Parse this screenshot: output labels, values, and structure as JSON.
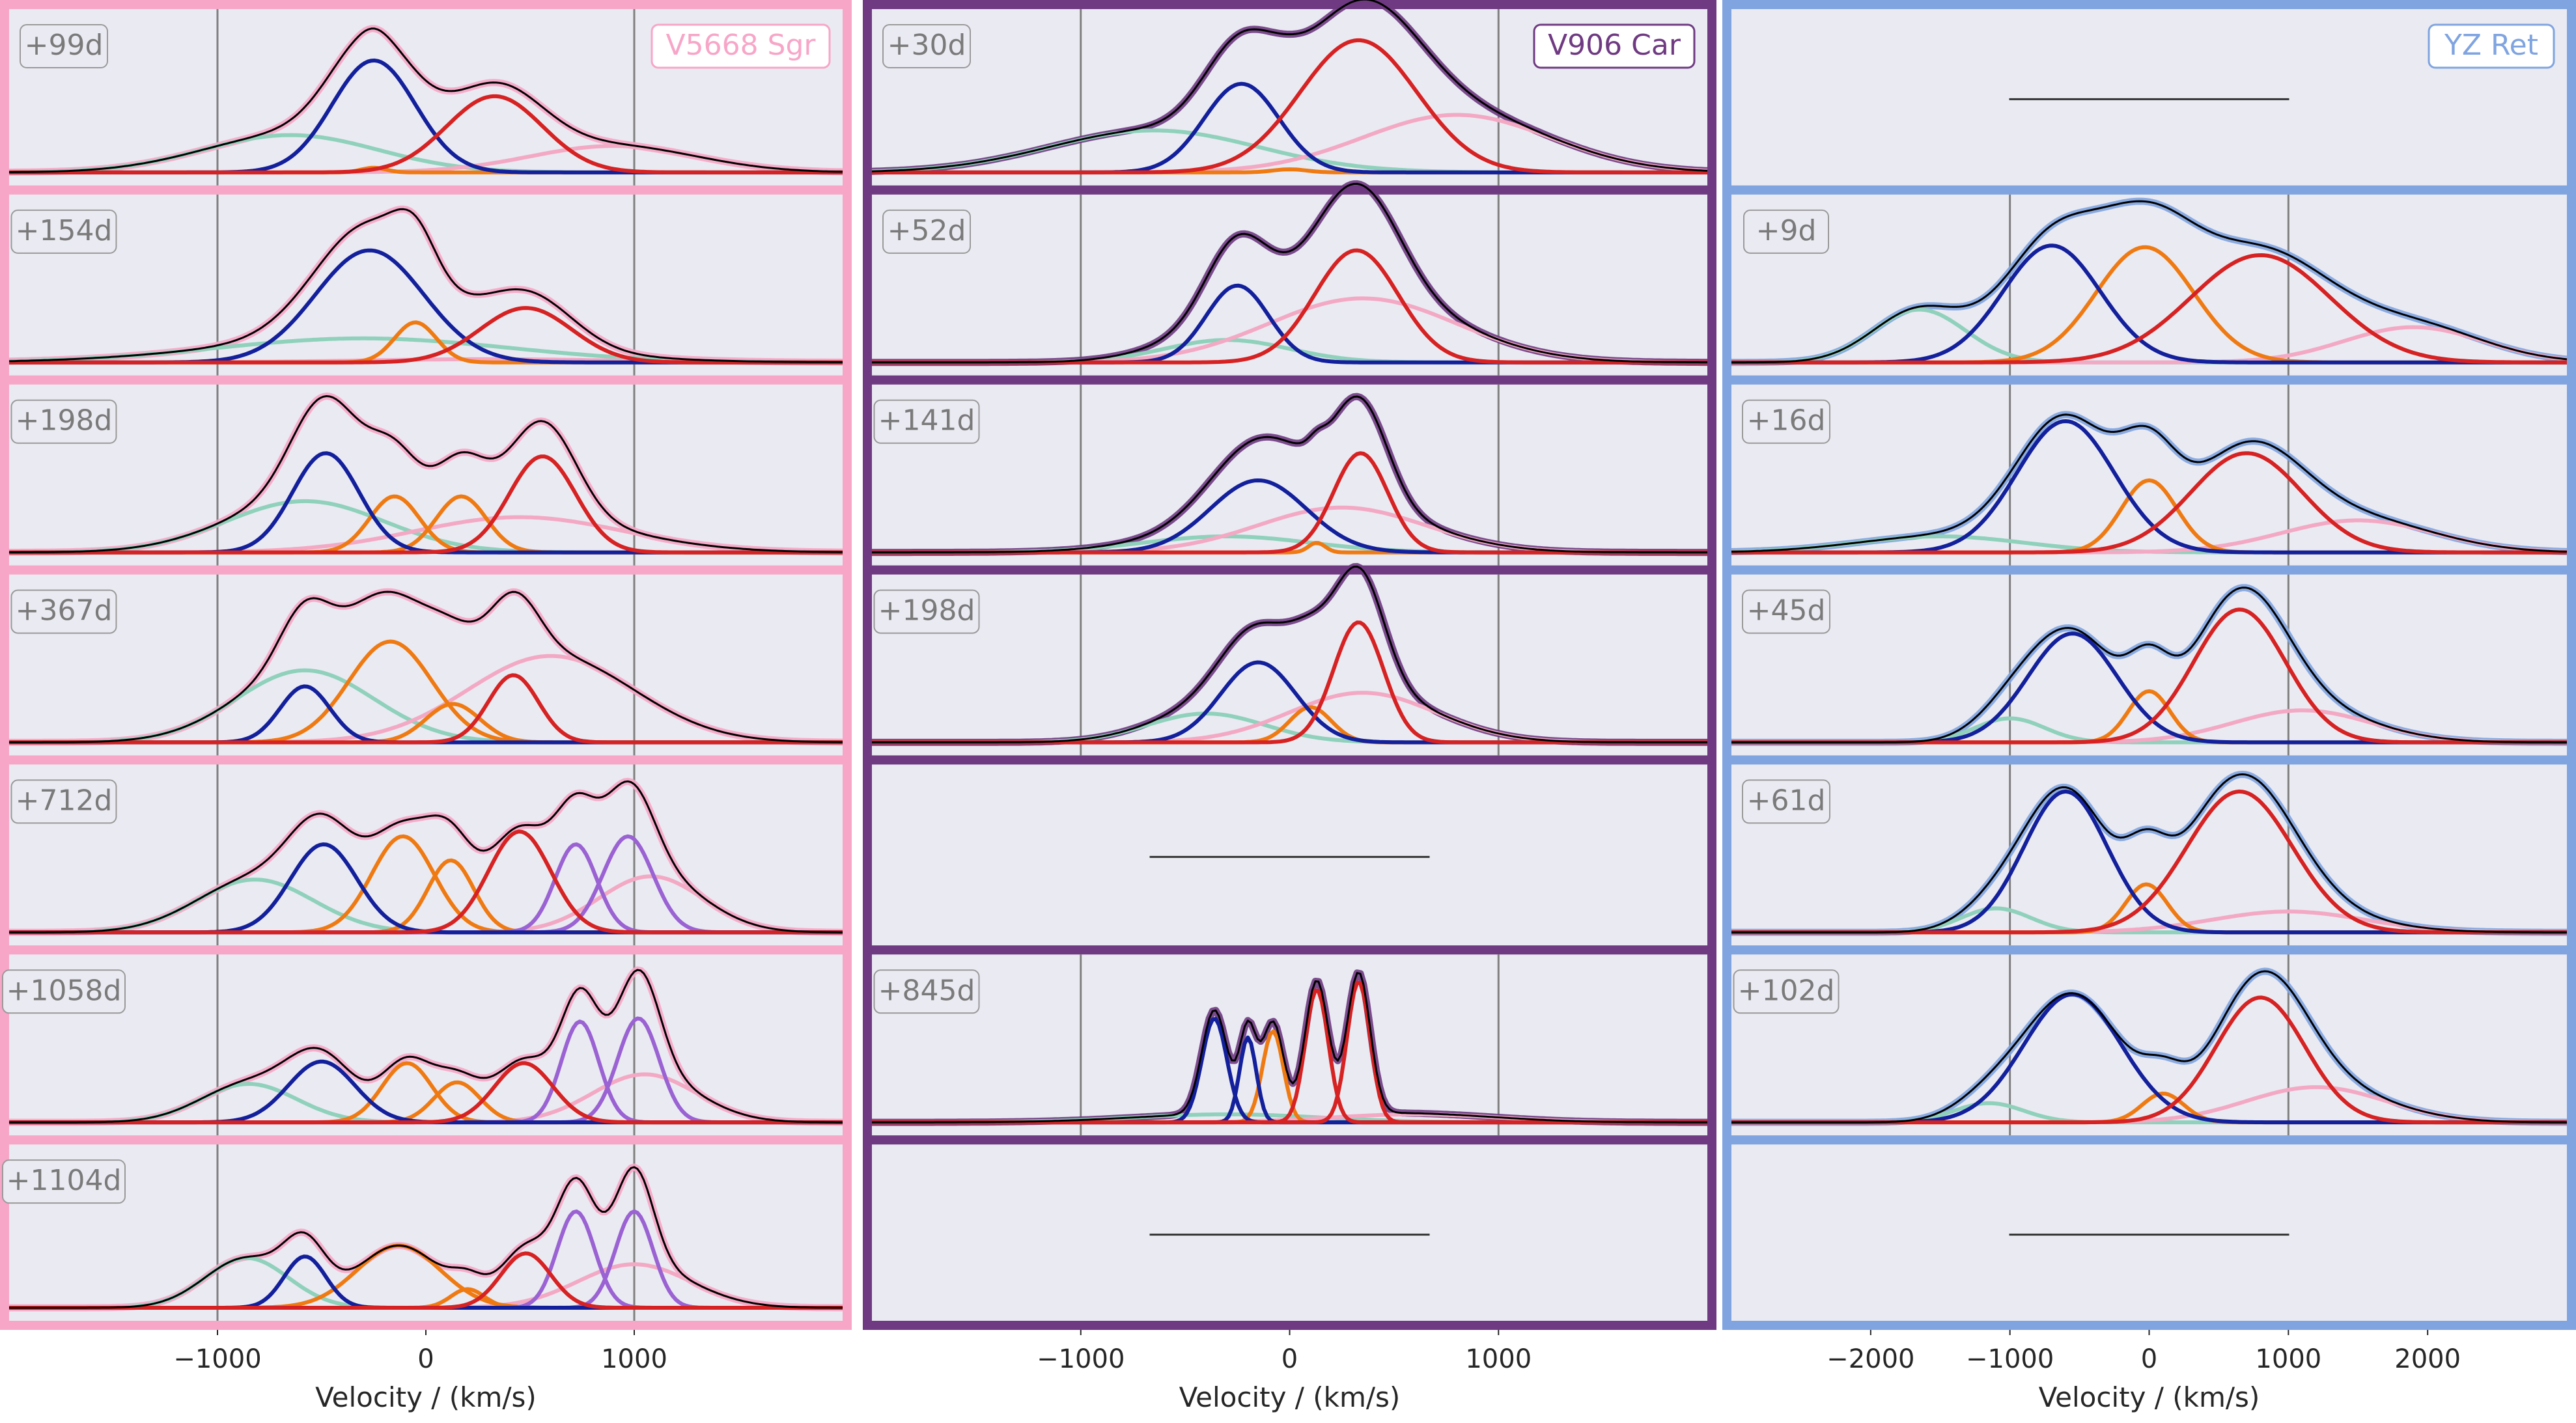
{
  "chart_data": [
    {
      "type": "line",
      "star": "V5668 Sgr",
      "color": "#f7a6c7",
      "xlabel": "Velocity / (km/s)",
      "xlim": [
        -2000,
        2000
      ],
      "xticks": [
        -1000,
        0,
        1000
      ],
      "xtick_labels": [
        "−1000",
        "0",
        "1000"
      ],
      "vlines": [
        -1000,
        1000
      ],
      "epochs": [
        {
          "label": "+99d",
          "components": [
            {
              "color": "teal",
              "mu": -650,
              "sigma": 420,
              "amp": 0.24
            },
            {
              "color": "blue",
              "mu": -250,
              "sigma": 200,
              "amp": 0.72
            },
            {
              "color": "orange",
              "mu": -250,
              "sigma": 60,
              "amp": 0.03
            },
            {
              "color": "red",
              "mu": 330,
              "sigma": 230,
              "amp": 0.49
            },
            {
              "color": "pink",
              "mu": 900,
              "sigma": 400,
              "amp": 0.17
            }
          ]
        },
        {
          "label": "+154d",
          "components": [
            {
              "color": "teal",
              "mu": -300,
              "sigma": 700,
              "amp": 0.15
            },
            {
              "color": "blue",
              "mu": -270,
              "sigma": 260,
              "amp": 0.7
            },
            {
              "color": "orange",
              "mu": -50,
              "sigma": 100,
              "amp": 0.25
            },
            {
              "color": "red",
              "mu": 480,
              "sigma": 220,
              "amp": 0.34
            },
            {
              "color": "pink",
              "mu": 300,
              "sigma": 600,
              "amp": 0.02
            }
          ]
        },
        {
          "label": "+198d",
          "components": [
            {
              "color": "teal",
              "mu": -580,
              "sigma": 380,
              "amp": 0.32
            },
            {
              "color": "blue",
              "mu": -480,
              "sigma": 160,
              "amp": 0.62
            },
            {
              "color": "orange",
              "mu": -150,
              "sigma": 120,
              "amp": 0.35
            },
            {
              "color": "orange",
              "mu": 170,
              "sigma": 120,
              "amp": 0.35
            },
            {
              "color": "red",
              "mu": 560,
              "sigma": 160,
              "amp": 0.6
            },
            {
              "color": "pink",
              "mu": 450,
              "sigma": 500,
              "amp": 0.22
            }
          ]
        },
        {
          "label": "+367d",
          "components": [
            {
              "color": "teal",
              "mu": -580,
              "sigma": 330,
              "amp": 0.45
            },
            {
              "color": "blue",
              "mu": -580,
              "sigma": 120,
              "amp": 0.35
            },
            {
              "color": "orange",
              "mu": -170,
              "sigma": 200,
              "amp": 0.63
            },
            {
              "color": "orange",
              "mu": 130,
              "sigma": 130,
              "amp": 0.24
            },
            {
              "color": "red",
              "mu": 420,
              "sigma": 120,
              "amp": 0.42
            },
            {
              "color": "pink",
              "mu": 600,
              "sigma": 400,
              "amp": 0.54
            }
          ]
        },
        {
          "label": "+712d",
          "components": [
            {
              "color": "teal",
              "mu": -820,
              "sigma": 280,
              "amp": 0.33
            },
            {
              "color": "blue",
              "mu": -490,
              "sigma": 160,
              "amp": 0.55
            },
            {
              "color": "orange",
              "mu": -110,
              "sigma": 150,
              "amp": 0.6
            },
            {
              "color": "orange",
              "mu": 120,
              "sigma": 110,
              "amp": 0.45
            },
            {
              "color": "red",
              "mu": 450,
              "sigma": 150,
              "amp": 0.63
            },
            {
              "color": "purple",
              "mu": 720,
              "sigma": 100,
              "amp": 0.55
            },
            {
              "color": "purple",
              "mu": 970,
              "sigma": 120,
              "amp": 0.6
            },
            {
              "color": "pink",
              "mu": 1080,
              "sigma": 250,
              "amp": 0.35
            }
          ]
        },
        {
          "label": "+1058d",
          "components": [
            {
              "color": "teal",
              "mu": -850,
              "sigma": 230,
              "amp": 0.24
            },
            {
              "color": "blue",
              "mu": -500,
              "sigma": 160,
              "amp": 0.38
            },
            {
              "color": "orange",
              "mu": -90,
              "sigma": 120,
              "amp": 0.37
            },
            {
              "color": "orange",
              "mu": 150,
              "sigma": 110,
              "amp": 0.25
            },
            {
              "color": "red",
              "mu": 470,
              "sigma": 140,
              "amp": 0.37
            },
            {
              "color": "purple",
              "mu": 740,
              "sigma": 90,
              "amp": 0.63
            },
            {
              "color": "purple",
              "mu": 1020,
              "sigma": 100,
              "amp": 0.65
            },
            {
              "color": "pink",
              "mu": 1050,
              "sigma": 250,
              "amp": 0.3
            }
          ]
        },
        {
          "label": "+1104d",
          "components": [
            {
              "color": "teal",
              "mu": -860,
              "sigma": 200,
              "amp": 0.32
            },
            {
              "color": "blue",
              "mu": -580,
              "sigma": 100,
              "amp": 0.33
            },
            {
              "color": "orange",
              "mu": -130,
              "sigma": 200,
              "amp": 0.4
            },
            {
              "color": "orange",
              "mu": 200,
              "sigma": 80,
              "amp": 0.12
            },
            {
              "color": "red",
              "mu": 480,
              "sigma": 120,
              "amp": 0.35
            },
            {
              "color": "purple",
              "mu": 720,
              "sigma": 90,
              "amp": 0.62
            },
            {
              "color": "purple",
              "mu": 1000,
              "sigma": 90,
              "amp": 0.62
            },
            {
              "color": "pink",
              "mu": 1000,
              "sigma": 270,
              "amp": 0.28
            }
          ]
        }
      ]
    },
    {
      "type": "line",
      "star": "V906 Car",
      "color": "#6f3a82",
      "xlabel": "Velocity / (km/s)",
      "xlim": [
        -2000,
        2000
      ],
      "xticks": [
        -1000,
        0,
        1000
      ],
      "xtick_labels": [
        "−1000",
        "0",
        "1000"
      ],
      "vlines": [
        -1000,
        1000
      ],
      "epochs": [
        {
          "label": "+30d",
          "components": [
            {
              "color": "teal",
              "mu": -650,
              "sigma": 500,
              "amp": 0.27
            },
            {
              "color": "blue",
              "mu": -230,
              "sigma": 180,
              "amp": 0.57
            },
            {
              "color": "orange",
              "mu": 0,
              "sigma": 80,
              "amp": 0.02
            },
            {
              "color": "red",
              "mu": 330,
              "sigma": 280,
              "amp": 0.85
            },
            {
              "color": "pink",
              "mu": 800,
              "sigma": 450,
              "amp": 0.37
            }
          ]
        },
        {
          "label": "+52d",
          "components": [
            {
              "color": "teal",
              "mu": -300,
              "sigma": 300,
              "amp": 0.14
            },
            {
              "color": "blue",
              "mu": -250,
              "sigma": 150,
              "amp": 0.48
            },
            {
              "color": "red",
              "mu": 320,
              "sigma": 200,
              "amp": 0.7
            },
            {
              "color": "pink",
              "mu": 350,
              "sigma": 450,
              "amp": 0.4
            }
          ]
        },
        {
          "label": "+141d",
          "components": [
            {
              "color": "teal",
              "mu": -300,
              "sigma": 400,
              "amp": 0.1
            },
            {
              "color": "blue",
              "mu": -150,
              "sigma": 230,
              "amp": 0.45
            },
            {
              "color": "orange",
              "mu": 130,
              "sigma": 40,
              "amp": 0.06
            },
            {
              "color": "red",
              "mu": 340,
              "sigma": 130,
              "amp": 0.62
            },
            {
              "color": "pink",
              "mu": 250,
              "sigma": 400,
              "amp": 0.28
            }
          ]
        },
        {
          "label": "+198d",
          "components": [
            {
              "color": "teal",
              "mu": -400,
              "sigma": 280,
              "amp": 0.18
            },
            {
              "color": "blue",
              "mu": -150,
              "sigma": 180,
              "amp": 0.5
            },
            {
              "color": "orange",
              "mu": 100,
              "sigma": 100,
              "amp": 0.22
            },
            {
              "color": "red",
              "mu": 330,
              "sigma": 120,
              "amp": 0.75
            },
            {
              "color": "pink",
              "mu": 350,
              "sigma": 350,
              "amp": 0.31
            }
          ]
        },
        {
          "label": "",
          "components": []
        },
        {
          "label": "+845d",
          "components": [
            {
              "color": "teal",
              "mu": -300,
              "sigma": 450,
              "amp": 0.05
            },
            {
              "color": "blue",
              "mu": -360,
              "sigma": 60,
              "amp": 0.65
            },
            {
              "color": "blue",
              "mu": -200,
              "sigma": 40,
              "amp": 0.53
            },
            {
              "color": "orange",
              "mu": -80,
              "sigma": 50,
              "amp": 0.57
            },
            {
              "color": "red",
              "mu": 130,
              "sigma": 55,
              "amp": 0.83
            },
            {
              "color": "red",
              "mu": 330,
              "sigma": 55,
              "amp": 0.88
            },
            {
              "color": "pink",
              "mu": 600,
              "sigma": 400,
              "amp": 0.05
            }
          ]
        },
        {
          "label": "",
          "components": []
        }
      ]
    },
    {
      "type": "line",
      "star": "YZ Ret",
      "color": "#7fa4e0",
      "xlabel": "Velocity / (km/s)",
      "xlim": [
        -3000,
        3000
      ],
      "xticks": [
        -2000,
        -1000,
        0,
        1000,
        2000
      ],
      "xtick_labels": [
        "−2000",
        "−1000",
        "0",
        "1000",
        "2000"
      ],
      "vlines": [
        -1000,
        1000
      ],
      "epochs": [
        {
          "label": "",
          "components": []
        },
        {
          "label": "+9d",
          "components": [
            {
              "color": "teal",
              "mu": -1650,
              "sigma": 330,
              "amp": 0.33
            },
            {
              "color": "blue",
              "mu": -700,
              "sigma": 350,
              "amp": 0.73
            },
            {
              "color": "orange",
              "mu": -30,
              "sigma": 350,
              "amp": 0.72
            },
            {
              "color": "red",
              "mu": 800,
              "sigma": 500,
              "amp": 0.67
            },
            {
              "color": "pink",
              "mu": 1900,
              "sigma": 500,
              "amp": 0.22
            }
          ]
        },
        {
          "label": "+16d",
          "components": [
            {
              "color": "teal",
              "mu": -1500,
              "sigma": 600,
              "amp": 0.1
            },
            {
              "color": "blue",
              "mu": -600,
              "sigma": 350,
              "amp": 0.82
            },
            {
              "color": "orange",
              "mu": 0,
              "sigma": 200,
              "amp": 0.45
            },
            {
              "color": "red",
              "mu": 700,
              "sigma": 400,
              "amp": 0.62
            },
            {
              "color": "pink",
              "mu": 1500,
              "sigma": 550,
              "amp": 0.2
            }
          ]
        },
        {
          "label": "+45d",
          "components": [
            {
              "color": "teal",
              "mu": -1000,
              "sigma": 250,
              "amp": 0.15
            },
            {
              "color": "blue",
              "mu": -550,
              "sigma": 320,
              "amp": 0.68
            },
            {
              "color": "orange",
              "mu": 0,
              "sigma": 150,
              "amp": 0.32
            },
            {
              "color": "red",
              "mu": 650,
              "sigma": 330,
              "amp": 0.83
            },
            {
              "color": "pink",
              "mu": 1100,
              "sigma": 500,
              "amp": 0.2
            }
          ]
        },
        {
          "label": "+61d",
          "components": [
            {
              "color": "teal",
              "mu": -1100,
              "sigma": 250,
              "amp": 0.15
            },
            {
              "color": "blue",
              "mu": -600,
              "sigma": 300,
              "amp": 0.88
            },
            {
              "color": "orange",
              "mu": -20,
              "sigma": 150,
              "amp": 0.3
            },
            {
              "color": "red",
              "mu": 650,
              "sigma": 380,
              "amp": 0.88
            },
            {
              "color": "pink",
              "mu": 1000,
              "sigma": 550,
              "amp": 0.13
            }
          ]
        },
        {
          "label": "+102d",
          "components": [
            {
              "color": "teal",
              "mu": -1150,
              "sigma": 250,
              "amp": 0.12
            },
            {
              "color": "blue",
              "mu": -550,
              "sigma": 350,
              "amp": 0.8
            },
            {
              "color": "orange",
              "mu": 100,
              "sigma": 150,
              "amp": 0.18
            },
            {
              "color": "red",
              "mu": 800,
              "sigma": 320,
              "amp": 0.78
            },
            {
              "color": "pink",
              "mu": 1200,
              "sigma": 500,
              "amp": 0.22
            }
          ]
        },
        {
          "label": "",
          "components": []
        }
      ]
    }
  ],
  "palette": {
    "teal": "#8fd1bb",
    "blue": "#13209b",
    "orange": "#ef7a12",
    "red": "#d62222",
    "pink": "#f3a9c3",
    "purple": "#9a62d2",
    "sum": "#000000",
    "plot_bg": "#eaeaf2",
    "vline": "#808080"
  }
}
